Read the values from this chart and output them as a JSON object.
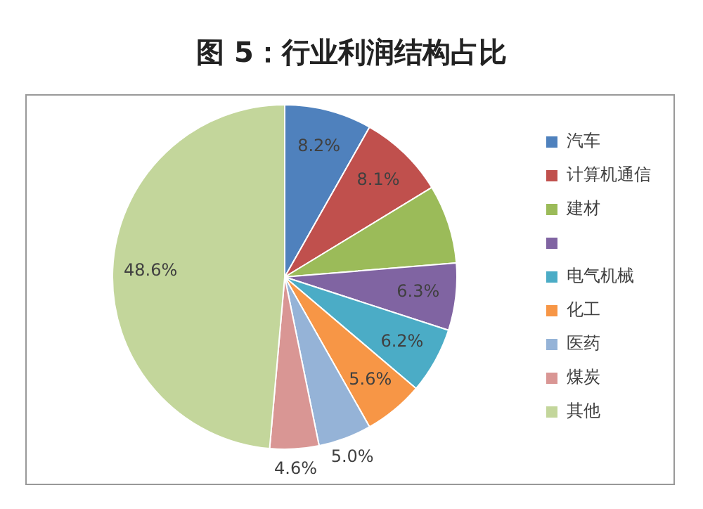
{
  "chart_data": {
    "type": "pie",
    "title": "图 5：行业利润结构占比",
    "categories": [
      "汽车",
      "计算机通信",
      "建材",
      null,
      "电气机械",
      "化工",
      "医药",
      "煤炭",
      "其他"
    ],
    "values": [
      8.2,
      8.1,
      7.4,
      6.3,
      6.2,
      5.6,
      5.0,
      4.6,
      48.6
    ],
    "colors": [
      "#4f81bd",
      "#c0504d",
      "#9bbb59",
      "#8064a2",
      "#4bacc6",
      "#f79646",
      "#95b3d7",
      "#d99694",
      "#c3d69b"
    ],
    "value_labels": [
      "8.2%",
      "8.1%",
      null,
      "6.3%",
      "6.2%",
      "5.6%",
      "5.0%",
      "4.6%",
      "48.6%"
    ],
    "legend": "right"
  }
}
